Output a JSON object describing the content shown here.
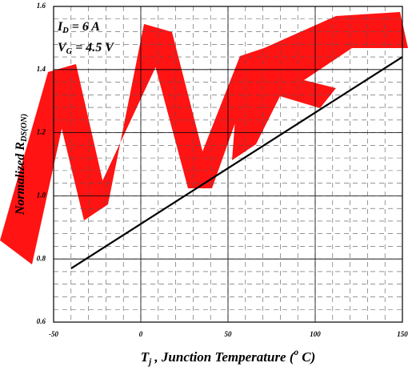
{
  "chart_data": {
    "type": "line",
    "x_label": {
      "main": "T",
      "sub": "j",
      "mid": " , Junction Temperature (",
      "sup": "o",
      "end": " C)"
    },
    "y_label": {
      "main": "Normalized R",
      "sub": "DS(ON)"
    },
    "annotations": [
      {
        "main": "I",
        "sub": "D",
        "rest": " = 6 A"
      },
      {
        "main": "V",
        "sub": "G",
        "rest": " = 4.5 V"
      }
    ],
    "x": [
      -40,
      150
    ],
    "series": [
      {
        "color": "#000000",
        "values": [
          0.77,
          1.44
        ]
      }
    ],
    "xlim": [
      -50,
      150
    ],
    "xticks": [
      -50,
      0,
      50,
      100,
      150
    ],
    "ylim": [
      0.6,
      1.6
    ],
    "yticks": [
      0.6,
      {
        "value": 0.8,
        "label": "0.8"
      },
      {
        "value": 1.0,
        "label": "1.0"
      },
      {
        "value": 1.2,
        "label": "1.2"
      },
      {
        "value": 1.4,
        "label": "1.4"
      },
      1.6
    ],
    "grid": true
  }
}
